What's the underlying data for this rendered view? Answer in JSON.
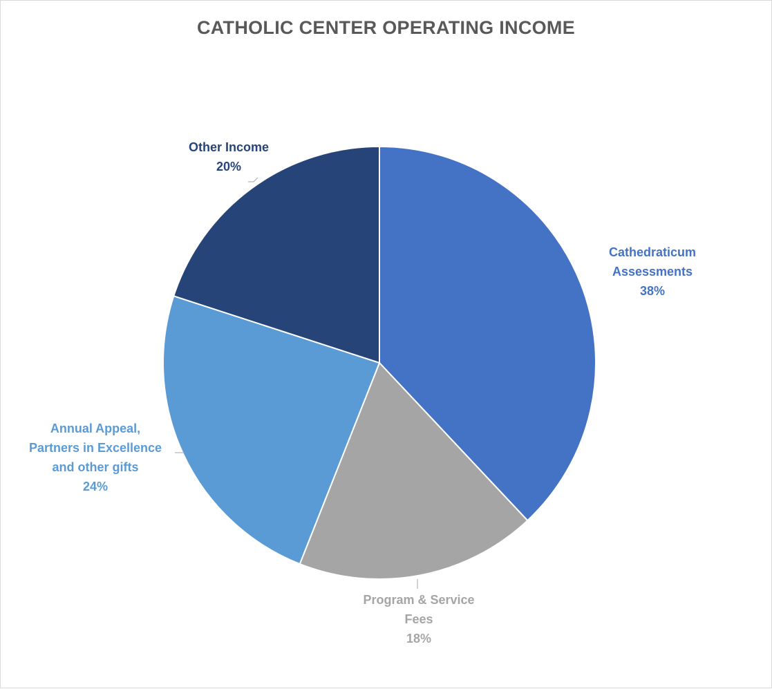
{
  "chart_data": {
    "type": "pie",
    "title": "CATHOLIC CENTER OPERATING INCOME",
    "slices": [
      {
        "label_lines": [
          "Cathedraticum",
          "Assessments"
        ],
        "value": 38,
        "value_label": "38%",
        "color": "#4472C4"
      },
      {
        "label_lines": [
          "Program & Service",
          "Fees"
        ],
        "value": 18,
        "value_label": "18%",
        "color": "#A5A5A5"
      },
      {
        "label_lines": [
          "Annual Appeal,",
          "Partners in Excellence",
          "and other gifts"
        ],
        "value": 24,
        "value_label": "24%",
        "color": "#5B9BD5"
      },
      {
        "label_lines": [
          "Other Income"
        ],
        "value": 20,
        "value_label": "20%",
        "color": "#264478"
      }
    ]
  }
}
